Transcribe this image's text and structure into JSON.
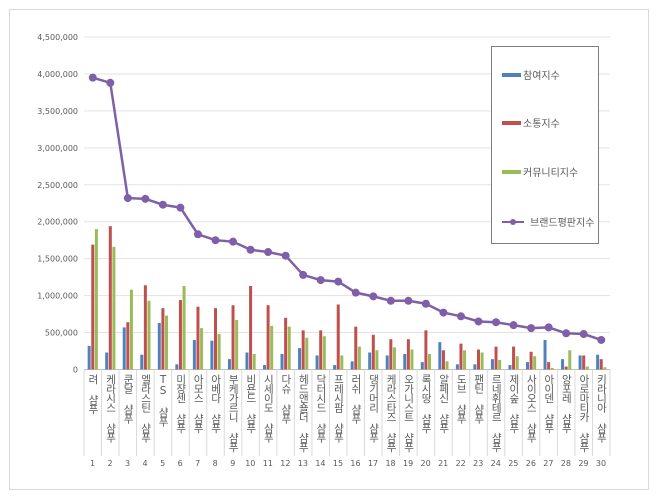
{
  "chart_data": {
    "type": "bar",
    "categories": [
      "려 샴푸",
      "케라시스 샴푸",
      "쿤달 샴푸",
      "엘라스틴 샴푸",
      "TS 샴푸",
      "미쟝센 샴푸",
      "아모스 샴푸",
      "아베다 샴푸",
      "부케가르니 샴푸",
      "비욘드 샴푸",
      "시세이도 샴푸",
      "다슈 샴푸",
      "헤드앤숄더 샴푸",
      "닥터시드 샴푸",
      "프레시팜 샴푸",
      "러쉬 샴푸",
      "댕기머리 샴푸",
      "케라스타즈 샴푸",
      "오가니스트 샴푸",
      "록시땅 샴푸",
      "알페신 샴푸",
      "도브 샴푸",
      "팬틴 샴푸",
      "르네휘테르 샴푸",
      "제이숲 샴푸",
      "사이오스 샴푸",
      "아이덴 샴푸",
      "앙포레 샴푸",
      "아로마티카 샴푸",
      "키라니아 샴푸"
    ],
    "rank_labels": [
      "1",
      "2",
      "3",
      "4",
      "5",
      "6",
      "7",
      "8",
      "9",
      "10",
      "11",
      "12",
      "13",
      "14",
      "15",
      "16",
      "17",
      "18",
      "19",
      "20",
      "21",
      "22",
      "23",
      "24",
      "25",
      "26",
      "27",
      "28",
      "29",
      "30"
    ],
    "series": [
      {
        "name": "참여지수",
        "kind": "bar",
        "color": "#4f81bd",
        "values": [
          320000,
          230000,
          570000,
          200000,
          630000,
          70000,
          400000,
          390000,
          140000,
          230000,
          60000,
          210000,
          290000,
          190000,
          60000,
          110000,
          230000,
          190000,
          210000,
          100000,
          370000,
          70000,
          70000,
          140000,
          60000,
          100000,
          400000,
          140000,
          190000,
          200000
        ]
      },
      {
        "name": "소통지수",
        "kind": "bar",
        "color": "#c0504d",
        "values": [
          1690000,
          1940000,
          640000,
          1140000,
          830000,
          940000,
          850000,
          830000,
          870000,
          1130000,
          870000,
          700000,
          530000,
          530000,
          880000,
          580000,
          470000,
          410000,
          410000,
          530000,
          260000,
          350000,
          270000,
          310000,
          310000,
          240000,
          100000,
          40000,
          190000,
          140000
        ]
      },
      {
        "name": "커뮤니티지수",
        "kind": "bar",
        "color": "#9bbb59",
        "values": [
          1900000,
          1660000,
          1080000,
          930000,
          730000,
          1130000,
          560000,
          480000,
          670000,
          210000,
          590000,
          580000,
          430000,
          450000,
          190000,
          310000,
          260000,
          300000,
          270000,
          210000,
          110000,
          260000,
          230000,
          130000,
          180000,
          180000,
          20000,
          260000,
          40000,
          30000
        ]
      },
      {
        "name": "브랜드평판지수",
        "kind": "line",
        "color": "#7f5fa8",
        "values": [
          3950000,
          3880000,
          2320000,
          2310000,
          2230000,
          2190000,
          1830000,
          1750000,
          1730000,
          1620000,
          1590000,
          1540000,
          1280000,
          1210000,
          1190000,
          1040000,
          990000,
          930000,
          930000,
          890000,
          770000,
          720000,
          650000,
          640000,
          600000,
          560000,
          570000,
          490000,
          480000,
          400000
        ]
      }
    ],
    "ylim": [
      0,
      4500000
    ],
    "yticks": [
      "0",
      "500,000",
      "1,000,000",
      "1,500,000",
      "2,000,000",
      "2,500,000",
      "3,000,000",
      "3,500,000",
      "4,000,000",
      "4,500,000"
    ],
    "grid": true,
    "legend": "right"
  }
}
